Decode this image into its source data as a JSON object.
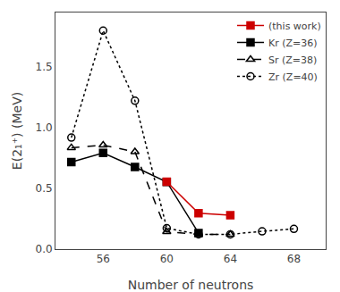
{
  "chart_data": {
    "type": "line",
    "xlabel": "Number of neutrons",
    "ylabel": "E(2₁⁺) (MeV)",
    "xlim": [
      53,
      70
    ],
    "ylim": [
      0,
      1.95
    ],
    "xticks": [
      56,
      60,
      64,
      68
    ],
    "yticks": [
      {
        "value": 0,
        "label": "0.0"
      },
      0.5,
      {
        "value": 1.0,
        "label": "1.0"
      },
      1.5
    ],
    "grid": false,
    "legend": "upper right",
    "series": [
      {
        "name": "Zr (Z=40)",
        "color": "#000000",
        "line_style": "dot",
        "marker": "circle-open",
        "x": [
          54,
          56,
          58,
          60,
          62,
          64,
          66,
          68
        ],
        "values": [
          0.919,
          1.801,
          1.223,
          0.173,
          0.122,
          0.122,
          0.147,
          0.167
        ]
      },
      {
        "name": "Sr (Z=38)",
        "color": "#000000",
        "line_style": "dash",
        "marker": "triangle-up-open",
        "x": [
          54,
          56,
          58,
          60,
          62,
          64
        ],
        "values": [
          0.836,
          0.857,
          0.802,
          0.144,
          0.122,
          0.122
        ]
      },
      {
        "name": "Kr (Z=36)",
        "color": "#000000",
        "line_style": "solid",
        "marker": "square",
        "x": [
          54,
          56,
          58,
          60,
          62
        ],
        "values": [
          0.718,
          0.793,
          0.677,
          0.554,
          0.133
        ]
      },
      {
        "name": "(this work)",
        "color": "#cc0000",
        "line_style": "solid",
        "marker": "square",
        "x": [
          60,
          62,
          64
        ],
        "values": [
          0.555,
          0.296,
          0.279
        ]
      }
    ]
  }
}
